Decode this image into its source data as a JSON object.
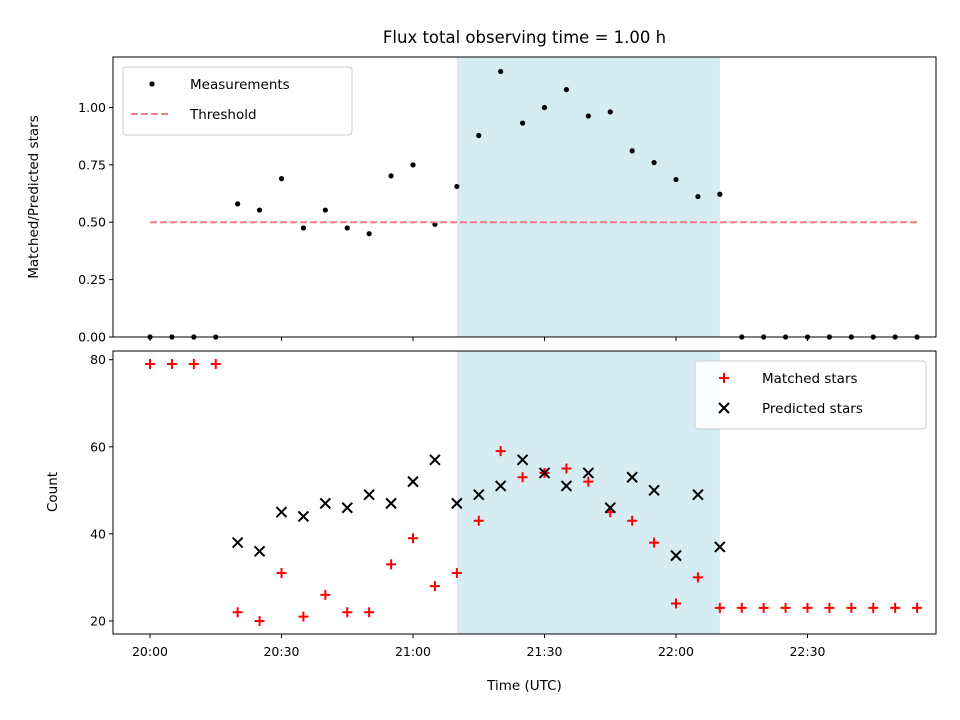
{
  "chart_data": [
    {
      "type": "scatter",
      "title": "Flux total observing time = 1.00 h",
      "xlabel": "",
      "ylabel": "Matched/Predicted stars",
      "ylim": [
        0,
        1.22
      ],
      "yticks": [
        "0.00",
        "0.25",
        "0.50",
        "0.75",
        "1.00"
      ],
      "highlight_span": {
        "start": "21:10",
        "end": "22:10",
        "color": "#add8e6"
      },
      "legend_position": "upper left",
      "grid": false,
      "series": [
        {
          "name": "Measurements",
          "marker": "dot",
          "color": "#000000",
          "x": [
            "20:00",
            "20:05",
            "20:10",
            "20:15",
            "20:20",
            "20:25",
            "20:30",
            "20:35",
            "20:40",
            "20:45",
            "20:50",
            "20:55",
            "21:00",
            "21:05",
            "21:10",
            "21:15",
            "21:20",
            "21:25",
            "21:30",
            "21:35",
            "21:40",
            "21:45",
            "21:50",
            "21:55",
            "22:00",
            "22:05",
            "22:10",
            "22:15",
            "22:20",
            "22:25",
            "22:30",
            "22:35",
            "22:40",
            "22:45",
            "22:50",
            "22:55"
          ],
          "y": [
            0,
            0,
            0,
            0,
            0.58,
            0.553,
            0.69,
            0.475,
            0.553,
            0.475,
            0.45,
            0.702,
            0.75,
            0.491,
            0.656,
            0.878,
            1.157,
            0.932,
            1.0,
            1.078,
            0.963,
            0.981,
            0.811,
            0.76,
            0.686,
            0.612,
            0.622,
            0,
            0,
            0,
            0,
            0,
            0,
            0,
            0,
            0
          ]
        },
        {
          "name": "Threshold",
          "style": "dashed",
          "color": "#f08080",
          "x": [
            "20:00",
            "22:55"
          ],
          "y": [
            0.5,
            0.5
          ]
        }
      ]
    },
    {
      "type": "scatter",
      "title": "",
      "xlabel": "Time (UTC)",
      "ylabel": "Count",
      "ylim": [
        17,
        82
      ],
      "yticks": [
        "20",
        "40",
        "60",
        "80"
      ],
      "xticks": [
        "20:00",
        "20:30",
        "21:00",
        "21:30",
        "22:00",
        "22:30"
      ],
      "highlight_span": {
        "start": "21:10",
        "end": "22:10",
        "color": "#add8e6"
      },
      "legend_position": "upper right",
      "grid": false,
      "series": [
        {
          "name": "Matched stars",
          "marker": "plus",
          "color": "#ff0000",
          "x": [
            "20:00",
            "20:05",
            "20:10",
            "20:15",
            "20:20",
            "20:25",
            "20:30",
            "20:35",
            "20:40",
            "20:45",
            "20:50",
            "20:55",
            "21:00",
            "21:05",
            "21:10",
            "21:15",
            "21:20",
            "21:25",
            "21:30",
            "21:35",
            "21:40",
            "21:45",
            "21:50",
            "21:55",
            "22:00",
            "22:05",
            "22:10",
            "22:15",
            "22:20",
            "22:25",
            "22:30",
            "22:35",
            "22:40",
            "22:45",
            "22:50",
            "22:55"
          ],
          "y": [
            79,
            79,
            79,
            79,
            22,
            20,
            31,
            21,
            26,
            22,
            22,
            33,
            39,
            28,
            31,
            43,
            59,
            53,
            54,
            55,
            52,
            45,
            43,
            38,
            24,
            30,
            23,
            23,
            23,
            23,
            23,
            23,
            23,
            23,
            23,
            23
          ]
        },
        {
          "name": "Predicted stars",
          "marker": "x",
          "color": "#000000",
          "x": [
            "20:20",
            "20:25",
            "20:30",
            "20:35",
            "20:40",
            "20:45",
            "20:50",
            "20:55",
            "21:00",
            "21:05",
            "21:10",
            "21:15",
            "21:20",
            "21:25",
            "21:30",
            "21:35",
            "21:40",
            "21:45",
            "21:50",
            "21:55",
            "22:00",
            "22:05",
            "22:10"
          ],
          "y": [
            38,
            36,
            45,
            44,
            47,
            46,
            49,
            47,
            52,
            57,
            47,
            49,
            51,
            57,
            54,
            51,
            54,
            46,
            53,
            50,
            35,
            49,
            37
          ]
        }
      ]
    }
  ]
}
